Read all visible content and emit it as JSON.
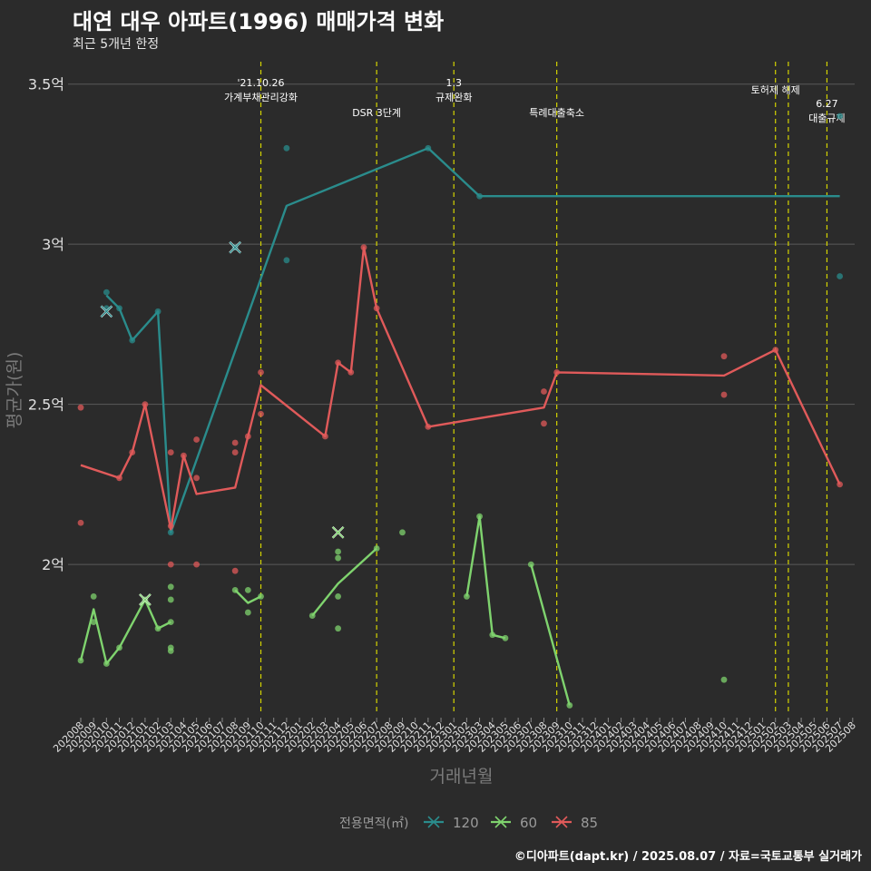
{
  "title": "대연 대우 아파트(1996) 매매가격 변화",
  "subtitle": "최근 5개년 한정",
  "caption": "©디아파트(dapt.kr) / 2025.08.07 / 자료=국토교통부 실거래가",
  "colors": {
    "background": "#2b2b2b",
    "grid": "#5a5a5a",
    "event_line": "#d4d400",
    "s120": "#2a8c8c",
    "s60": "#7fd36e",
    "s85": "#e05a5a"
  },
  "chart_data": {
    "type": "line",
    "xlabel": "거래년월",
    "ylabel": "평균가(원)",
    "ylim": [
      1.53,
      3.57
    ],
    "y_ticks": [
      {
        "value": 2.0,
        "label": "2억"
      },
      {
        "value": 2.5,
        "label": "2.5억"
      },
      {
        "value": 3.0,
        "label": "3억"
      },
      {
        "value": 3.5,
        "label": "3.5억"
      }
    ],
    "x_categories": [
      "202008",
      "202009",
      "202010",
      "202011",
      "202012",
      "202101",
      "202102",
      "202103",
      "202104",
      "202105",
      "202106",
      "202107",
      "202108",
      "202109",
      "202110",
      "202111",
      "202112",
      "202201",
      "202202",
      "202203",
      "202204",
      "202205",
      "202206",
      "202207",
      "202208",
      "202209",
      "202210",
      "202211",
      "202212",
      "202301",
      "202302",
      "202303",
      "202304",
      "202305",
      "202306",
      "202307",
      "202308",
      "202309",
      "202310",
      "202311",
      "202312",
      "202401",
      "202402",
      "202403",
      "202404",
      "202405",
      "202406",
      "202407",
      "202408",
      "202409",
      "202410",
      "202411",
      "202412",
      "202501",
      "202502",
      "202503",
      "202504",
      "202505",
      "202506",
      "202507",
      "202508"
    ],
    "legend_title": "전용면적(㎡)",
    "legend_position": "bottom",
    "grid": true,
    "events": [
      {
        "x": 14.0,
        "label_lines": [
          "'21.10.26",
          "가계부채관리강화"
        ]
      },
      {
        "x": 23.0,
        "label_lines": [
          "DSR 3단계"
        ]
      },
      {
        "x": 29.0,
        "label_lines": [
          "1.3",
          "규제완화"
        ]
      },
      {
        "x": 37.0,
        "label_lines": [
          "특례대출축소"
        ]
      },
      {
        "x": 54.0,
        "label_lines": [
          "토허제 해제"
        ]
      },
      {
        "x": 55.0,
        "label_lines": []
      },
      {
        "x": 58.0,
        "label_lines": [
          "6.27",
          "대출규제"
        ]
      }
    ],
    "series": [
      {
        "name": "120",
        "color": "#2a8c8c",
        "line": [
          [
            2,
            2.84
          ],
          [
            3,
            2.8
          ],
          [
            4,
            2.7
          ],
          [
            6,
            2.79
          ],
          [
            7,
            2.1
          ],
          [
            16,
            3.12
          ],
          [
            27,
            3.3
          ],
          [
            31,
            3.15
          ],
          [
            59,
            3.15
          ]
        ],
        "points": [
          [
            2,
            2.85
          ],
          [
            2,
            2.8
          ],
          [
            3,
            2.8
          ],
          [
            4,
            2.7
          ],
          [
            6,
            2.79
          ],
          [
            7,
            2.1
          ],
          [
            12,
            2.99
          ],
          [
            16,
            3.3
          ],
          [
            16,
            2.95
          ],
          [
            27,
            3.3
          ],
          [
            31,
            3.15
          ],
          [
            59,
            3.4
          ],
          [
            59,
            2.9
          ]
        ],
        "crosses": [
          [
            2,
            2.79
          ],
          [
            12,
            2.99
          ]
        ]
      },
      {
        "name": "60",
        "color": "#7fd36e",
        "line_segments": [
          [
            [
              0,
              1.7
            ],
            [
              1,
              1.86
            ],
            [
              2,
              1.69
            ],
            [
              3,
              1.74
            ],
            [
              5,
              1.89
            ],
            [
              6,
              1.8
            ],
            [
              7,
              1.82
            ]
          ],
          [
            [
              12,
              1.92
            ],
            [
              13,
              1.88
            ],
            [
              14,
              1.9
            ]
          ],
          [
            [
              18,
              1.84
            ],
            [
              20,
              1.94
            ],
            [
              23,
              2.05
            ]
          ],
          [
            [
              30,
              1.9
            ],
            [
              31,
              2.15
            ],
            [
              32,
              1.78
            ],
            [
              33,
              1.77
            ]
          ],
          [
            [
              35,
              2.0
            ],
            [
              38,
              1.56
            ]
          ]
        ],
        "points": [
          [
            0,
            1.7
          ],
          [
            1,
            1.9
          ],
          [
            1,
            1.82
          ],
          [
            2,
            1.69
          ],
          [
            3,
            1.74
          ],
          [
            5,
            1.89
          ],
          [
            6,
            1.8
          ],
          [
            7,
            1.93
          ],
          [
            7,
            1.89
          ],
          [
            7,
            1.82
          ],
          [
            7,
            1.74
          ],
          [
            7,
            1.73
          ],
          [
            12,
            1.92
          ],
          [
            13,
            1.92
          ],
          [
            13,
            1.85
          ],
          [
            14,
            1.9
          ],
          [
            18,
            1.84
          ],
          [
            20,
            2.04
          ],
          [
            20,
            2.02
          ],
          [
            20,
            1.9
          ],
          [
            20,
            1.8
          ],
          [
            23,
            2.05
          ],
          [
            25,
            2.1
          ],
          [
            30,
            1.9
          ],
          [
            31,
            2.15
          ],
          [
            32,
            1.78
          ],
          [
            33,
            1.77
          ],
          [
            35,
            2.0
          ],
          [
            38,
            1.56
          ],
          [
            50,
            1.64
          ]
        ],
        "crosses": [
          [
            5,
            1.89
          ],
          [
            20,
            2.1
          ]
        ]
      },
      {
        "name": "85",
        "color": "#e05a5a",
        "line": [
          [
            0,
            2.31
          ],
          [
            3,
            2.27
          ],
          [
            4,
            2.35
          ],
          [
            5,
            2.5
          ],
          [
            7,
            2.11
          ],
          [
            8,
            2.34
          ],
          [
            9,
            2.22
          ],
          [
            12,
            2.24
          ],
          [
            14,
            2.56
          ],
          [
            19,
            2.4
          ],
          [
            20,
            2.63
          ],
          [
            21,
            2.6
          ],
          [
            22,
            2.99
          ],
          [
            23,
            2.8
          ],
          [
            27,
            2.43
          ],
          [
            36,
            2.49
          ],
          [
            37,
            2.6
          ],
          [
            50,
            2.59
          ],
          [
            54,
            2.67
          ],
          [
            59,
            2.25
          ]
        ],
        "points": [
          [
            0,
            2.49
          ],
          [
            0,
            2.13
          ],
          [
            3,
            2.27
          ],
          [
            4,
            2.35
          ],
          [
            5,
            2.5
          ],
          [
            7,
            2.35
          ],
          [
            7,
            2.12
          ],
          [
            7,
            2.0
          ],
          [
            8,
            2.34
          ],
          [
            9,
            2.39
          ],
          [
            9,
            2.27
          ],
          [
            9,
            2.0
          ],
          [
            12,
            2.38
          ],
          [
            12,
            2.35
          ],
          [
            12,
            1.98
          ],
          [
            13,
            2.4
          ],
          [
            14,
            2.6
          ],
          [
            14,
            2.47
          ],
          [
            19,
            2.4
          ],
          [
            20,
            2.63
          ],
          [
            21,
            2.6
          ],
          [
            22,
            2.99
          ],
          [
            23,
            2.8
          ],
          [
            27,
            2.43
          ],
          [
            36,
            2.54
          ],
          [
            36,
            2.44
          ],
          [
            37,
            2.6
          ],
          [
            50,
            2.65
          ],
          [
            50,
            2.53
          ],
          [
            54,
            2.67
          ],
          [
            59,
            2.25
          ]
        ],
        "crosses": []
      }
    ]
  }
}
